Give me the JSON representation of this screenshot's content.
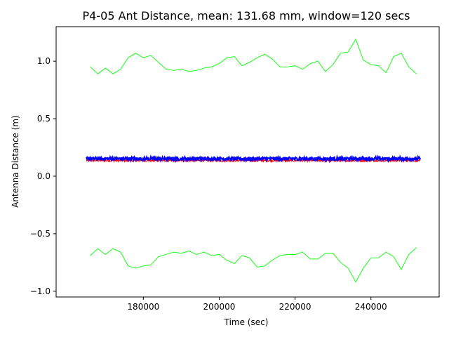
{
  "chart_data": {
    "type": "line",
    "title": "P4-05 Ant Distance, mean: 131.68 mm, window=120 secs",
    "xlabel": "Time (sec)",
    "ylabel": "Antenna Distance (m)",
    "xlim": [
      157000,
      258000
    ],
    "ylim": [
      -1.05,
      1.3
    ],
    "xticks": [
      180000,
      200000,
      220000,
      240000
    ],
    "xtick_labels": [
      "180000",
      "200000",
      "220000",
      "240000"
    ],
    "yticks": [
      1.0,
      0.5,
      0.0,
      -0.5,
      -1.0
    ],
    "ytick_labels": [
      "1.0",
      "0.5",
      "0.0",
      "−0.5",
      "−1.0"
    ],
    "grid": false,
    "legend": "none",
    "series": [
      {
        "color": "#0000ff",
        "style": "noisy-band",
        "x": [
          165000,
          253000
        ],
        "center": 0.152,
        "half_width": 0.014
      },
      {
        "color": "#ff0000",
        "style": "noisy-band",
        "x": [
          165000,
          253000
        ],
        "center": 0.136,
        "half_width": 0.008
      },
      {
        "color": "#00ff00",
        "style": "line",
        "x": [
          166000,
          168000,
          170000,
          172000,
          174000,
          176000,
          178000,
          180000,
          182000,
          184000,
          186000,
          188000,
          190000,
          192000,
          194000,
          196000,
          198000,
          200000,
          202000,
          204000,
          206000,
          208000,
          210000,
          212000,
          214000,
          216000,
          218000,
          220000,
          222000,
          224000,
          226000,
          228000,
          230000,
          232000,
          234000,
          236000,
          238000,
          240000,
          242000,
          244000,
          246000,
          248000,
          250000,
          252000
        ],
        "y": [
          0.95,
          0.89,
          0.94,
          0.89,
          0.93,
          1.03,
          1.07,
          1.03,
          1.05,
          0.99,
          0.93,
          0.92,
          0.93,
          0.91,
          0.92,
          0.94,
          0.95,
          0.98,
          1.03,
          1.04,
          0.96,
          0.99,
          1.03,
          1.06,
          1.02,
          0.95,
          0.95,
          0.96,
          0.93,
          0.98,
          1.0,
          0.91,
          0.97,
          1.07,
          1.08,
          1.19,
          1.01,
          0.97,
          0.96,
          0.9,
          1.04,
          1.07,
          0.95,
          0.89
        ]
      },
      {
        "color": "#00ff00",
        "style": "line",
        "x": [
          166000,
          168000,
          170000,
          172000,
          174000,
          176000,
          178000,
          180000,
          182000,
          184000,
          186000,
          188000,
          190000,
          192000,
          194000,
          196000,
          198000,
          200000,
          202000,
          204000,
          206000,
          208000,
          210000,
          212000,
          214000,
          216000,
          218000,
          220000,
          222000,
          224000,
          226000,
          228000,
          230000,
          232000,
          234000,
          236000,
          238000,
          240000,
          242000,
          244000,
          246000,
          248000,
          250000,
          252000
        ],
        "y": [
          -0.69,
          -0.63,
          -0.68,
          -0.63,
          -0.66,
          -0.78,
          -0.8,
          -0.78,
          -0.77,
          -0.7,
          -0.68,
          -0.66,
          -0.67,
          -0.65,
          -0.68,
          -0.66,
          -0.69,
          -0.68,
          -0.73,
          -0.76,
          -0.69,
          -0.71,
          -0.79,
          -0.78,
          -0.73,
          -0.69,
          -0.68,
          -0.68,
          -0.66,
          -0.72,
          -0.72,
          -0.67,
          -0.67,
          -0.75,
          -0.8,
          -0.92,
          -0.8,
          -0.71,
          -0.71,
          -0.66,
          -0.7,
          -0.81,
          -0.68,
          -0.62
        ]
      }
    ]
  }
}
